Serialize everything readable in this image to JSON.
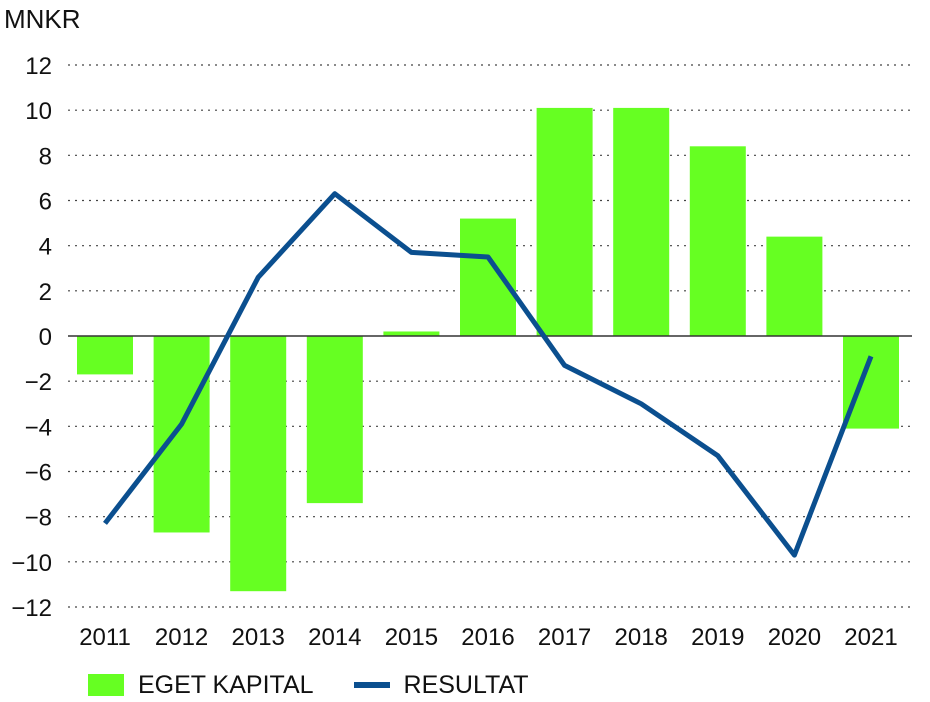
{
  "chart_data": {
    "type": "bar",
    "unit_label": "MNKR",
    "categories": [
      "2011",
      "2012",
      "2013",
      "2014",
      "2015",
      "2016",
      "2017",
      "2018",
      "2019",
      "2020",
      "2021"
    ],
    "series": [
      {
        "name": "EGET KAPITAL",
        "kind": "bar",
        "color": "#66ff22",
        "values": [
          -1.7,
          -8.7,
          -11.3,
          -7.4,
          0.2,
          5.2,
          10.1,
          10.1,
          8.4,
          4.4,
          -4.1
        ]
      },
      {
        "name": "RESULTAT",
        "kind": "line",
        "color": "#0b4f8f",
        "values": [
          -8.3,
          -3.9,
          2.6,
          6.3,
          3.7,
          3.5,
          -1.3,
          -3.0,
          -5.3,
          -9.7,
          -0.9
        ]
      }
    ],
    "ylim": [
      -12,
      12
    ],
    "yticks": [
      12,
      10,
      8,
      6,
      4,
      2,
      0,
      -2,
      -4,
      -6,
      -8,
      -10,
      -12
    ],
    "ytick_labels": [
      "12",
      "10",
      "8",
      "6",
      "4",
      "2",
      "0",
      "−2",
      "−4",
      "−6",
      "−8",
      "−10",
      "−12"
    ],
    "grid": "horizontal dotted",
    "legend_position": "bottom-left"
  }
}
